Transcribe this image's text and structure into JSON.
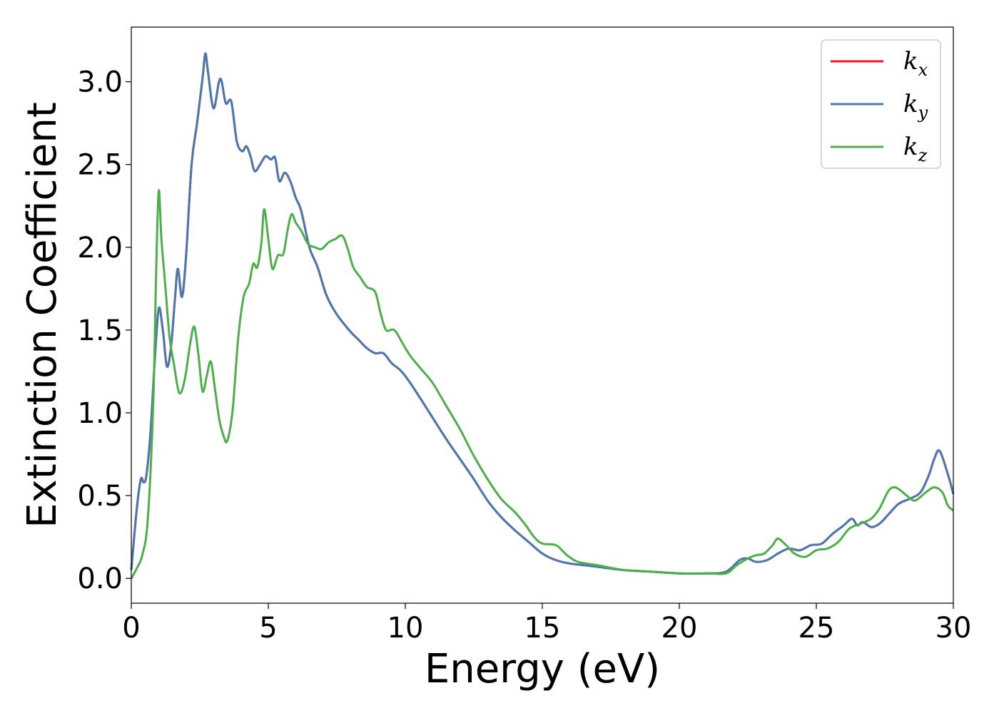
{
  "chart_data": {
    "type": "line",
    "title": "",
    "xlabel": "Energy (eV)",
    "ylabel": "Extinction Coefficient",
    "xlim": [
      0,
      30
    ],
    "ylim": [
      -0.15,
      3.33
    ],
    "xticks": [
      0,
      5,
      10,
      15,
      20,
      25,
      30
    ],
    "xtick_labels": [
      "0",
      "5",
      "10",
      "15",
      "20",
      "25",
      "30"
    ],
    "yticks": [
      0.0,
      0.5,
      1.0,
      1.5,
      2.0,
      2.5,
      3.0
    ],
    "ytick_labels": [
      "0.0",
      "0.5",
      "1.0",
      "1.5",
      "2.0",
      "2.5",
      "3.0"
    ],
    "grid": false,
    "legend_position": "top-right",
    "series": [
      {
        "name": "k",
        "subscript": "x",
        "color": "#e41a1c",
        "x": [
          0,
          0.2,
          0.35,
          0.45,
          0.55,
          0.7,
          0.85,
          1.0,
          1.15,
          1.3,
          1.45,
          1.6,
          1.7,
          1.85,
          2.0,
          2.2,
          2.4,
          2.6,
          2.7,
          2.8,
          3.0,
          3.2,
          3.3,
          3.45,
          3.65,
          3.85,
          4.05,
          4.2,
          4.35,
          4.5,
          4.7,
          4.9,
          5.1,
          5.25,
          5.4,
          5.6,
          5.8,
          6.0,
          6.2,
          6.5,
          6.8,
          7.1,
          7.4,
          7.7,
          8.0,
          8.3,
          8.6,
          8.9,
          9.2,
          9.5,
          9.8,
          10.1,
          10.5,
          11.0,
          11.5,
          12.0,
          12.5,
          13.0,
          13.5,
          14.0,
          14.5,
          15.0,
          15.5,
          16.0,
          16.5,
          17.0,
          18.0,
          19.0,
          20.0,
          21.0,
          21.7,
          22.2,
          22.5,
          22.8,
          23.2,
          23.6,
          24.0,
          24.4,
          24.8,
          25.2,
          25.6,
          26.0,
          26.3,
          26.5,
          26.7,
          27.0,
          27.3,
          27.6,
          28.0,
          28.4,
          28.8,
          29.1,
          29.3,
          29.5,
          29.8,
          30.0
        ],
        "y": [
          0.05,
          0.42,
          0.6,
          0.58,
          0.62,
          0.88,
          1.3,
          1.63,
          1.5,
          1.28,
          1.4,
          1.7,
          1.87,
          1.7,
          1.95,
          2.5,
          2.75,
          3.02,
          3.17,
          3.06,
          2.84,
          3.0,
          3.0,
          2.87,
          2.88,
          2.64,
          2.58,
          2.61,
          2.55,
          2.46,
          2.5,
          2.55,
          2.53,
          2.54,
          2.4,
          2.45,
          2.4,
          2.3,
          2.22,
          2.0,
          1.88,
          1.72,
          1.62,
          1.55,
          1.49,
          1.44,
          1.39,
          1.36,
          1.36,
          1.3,
          1.26,
          1.2,
          1.1,
          0.97,
          0.84,
          0.72,
          0.6,
          0.47,
          0.37,
          0.29,
          0.22,
          0.15,
          0.11,
          0.09,
          0.08,
          0.07,
          0.05,
          0.04,
          0.03,
          0.03,
          0.04,
          0.11,
          0.12,
          0.1,
          0.11,
          0.15,
          0.18,
          0.17,
          0.2,
          0.21,
          0.27,
          0.32,
          0.36,
          0.32,
          0.34,
          0.31,
          0.33,
          0.38,
          0.45,
          0.48,
          0.52,
          0.62,
          0.72,
          0.77,
          0.63,
          0.51
        ]
      },
      {
        "name": "k",
        "subscript": "y",
        "color": "#4a78b0",
        "x": [
          0,
          0.2,
          0.35,
          0.45,
          0.55,
          0.7,
          0.85,
          1.0,
          1.15,
          1.3,
          1.45,
          1.6,
          1.7,
          1.85,
          2.0,
          2.2,
          2.4,
          2.6,
          2.7,
          2.8,
          3.0,
          3.2,
          3.3,
          3.45,
          3.65,
          3.85,
          4.05,
          4.2,
          4.35,
          4.5,
          4.7,
          4.9,
          5.1,
          5.25,
          5.4,
          5.6,
          5.8,
          6.0,
          6.2,
          6.5,
          6.8,
          7.1,
          7.4,
          7.7,
          8.0,
          8.3,
          8.6,
          8.9,
          9.2,
          9.5,
          9.8,
          10.1,
          10.5,
          11.0,
          11.5,
          12.0,
          12.5,
          13.0,
          13.5,
          14.0,
          14.5,
          15.0,
          15.5,
          16.0,
          16.5,
          17.0,
          18.0,
          19.0,
          20.0,
          21.0,
          21.7,
          22.2,
          22.5,
          22.8,
          23.2,
          23.6,
          24.0,
          24.4,
          24.8,
          25.2,
          25.6,
          26.0,
          26.3,
          26.5,
          26.7,
          27.0,
          27.3,
          27.6,
          28.0,
          28.4,
          28.8,
          29.1,
          29.3,
          29.5,
          29.8,
          30.0
        ],
        "y": [
          0.05,
          0.42,
          0.6,
          0.58,
          0.62,
          0.88,
          1.3,
          1.63,
          1.5,
          1.28,
          1.4,
          1.7,
          1.87,
          1.7,
          1.95,
          2.5,
          2.75,
          3.02,
          3.17,
          3.06,
          2.84,
          3.0,
          3.0,
          2.87,
          2.88,
          2.64,
          2.58,
          2.61,
          2.55,
          2.46,
          2.5,
          2.55,
          2.53,
          2.54,
          2.4,
          2.45,
          2.4,
          2.3,
          2.22,
          2.0,
          1.88,
          1.72,
          1.62,
          1.55,
          1.49,
          1.44,
          1.39,
          1.36,
          1.36,
          1.3,
          1.26,
          1.2,
          1.1,
          0.97,
          0.84,
          0.72,
          0.6,
          0.47,
          0.37,
          0.29,
          0.22,
          0.15,
          0.11,
          0.09,
          0.08,
          0.07,
          0.05,
          0.04,
          0.03,
          0.03,
          0.04,
          0.11,
          0.12,
          0.1,
          0.11,
          0.15,
          0.18,
          0.17,
          0.2,
          0.21,
          0.27,
          0.32,
          0.36,
          0.32,
          0.34,
          0.31,
          0.33,
          0.38,
          0.45,
          0.48,
          0.52,
          0.62,
          0.72,
          0.77,
          0.63,
          0.51
        ]
      },
      {
        "name": "k",
        "subscript": "z",
        "color": "#4daf4a",
        "x": [
          0,
          0.2,
          0.4,
          0.6,
          0.8,
          0.9,
          1.0,
          1.1,
          1.25,
          1.4,
          1.55,
          1.75,
          1.95,
          2.15,
          2.3,
          2.45,
          2.6,
          2.75,
          2.9,
          3.05,
          3.2,
          3.35,
          3.5,
          3.7,
          3.9,
          4.1,
          4.3,
          4.45,
          4.6,
          4.75,
          4.85,
          5.0,
          5.15,
          5.35,
          5.55,
          5.7,
          5.85,
          6.0,
          6.2,
          6.45,
          6.7,
          6.95,
          7.2,
          7.45,
          7.7,
          7.9,
          8.1,
          8.35,
          8.6,
          8.9,
          9.1,
          9.3,
          9.6,
          9.9,
          10.2,
          10.6,
          11.0,
          11.5,
          12.0,
          12.5,
          13.0,
          13.5,
          14.0,
          14.4,
          14.7,
          15.0,
          15.5,
          15.9,
          16.3,
          17.0,
          18.0,
          19.0,
          20.0,
          21.0,
          21.7,
          22.1,
          22.5,
          22.8,
          23.1,
          23.4,
          23.6,
          23.9,
          24.2,
          24.6,
          25.0,
          25.4,
          25.8,
          26.2,
          26.6,
          27.0,
          27.3,
          27.6,
          27.8,
          28.0,
          28.3,
          28.6,
          29.0,
          29.3,
          29.6,
          29.8,
          30.0
        ],
        "y": [
          0.0,
          0.06,
          0.14,
          0.35,
          1.05,
          1.8,
          2.34,
          2.05,
          1.75,
          1.45,
          1.3,
          1.12,
          1.2,
          1.42,
          1.52,
          1.35,
          1.13,
          1.22,
          1.31,
          1.15,
          0.97,
          0.87,
          0.83,
          1.02,
          1.45,
          1.7,
          1.78,
          1.9,
          1.88,
          2.03,
          2.23,
          2.05,
          1.87,
          1.95,
          1.96,
          2.1,
          2.2,
          2.15,
          2.1,
          2.02,
          2.0,
          1.99,
          2.03,
          2.05,
          2.07,
          1.99,
          1.88,
          1.82,
          1.76,
          1.73,
          1.6,
          1.5,
          1.5,
          1.42,
          1.34,
          1.26,
          1.18,
          1.04,
          0.9,
          0.74,
          0.6,
          0.48,
          0.4,
          0.32,
          0.25,
          0.21,
          0.2,
          0.14,
          0.1,
          0.08,
          0.05,
          0.04,
          0.03,
          0.03,
          0.03,
          0.08,
          0.12,
          0.14,
          0.15,
          0.2,
          0.24,
          0.2,
          0.15,
          0.13,
          0.17,
          0.18,
          0.22,
          0.3,
          0.33,
          0.36,
          0.42,
          0.52,
          0.55,
          0.54,
          0.5,
          0.47,
          0.52,
          0.55,
          0.52,
          0.44,
          0.41
        ]
      }
    ]
  }
}
